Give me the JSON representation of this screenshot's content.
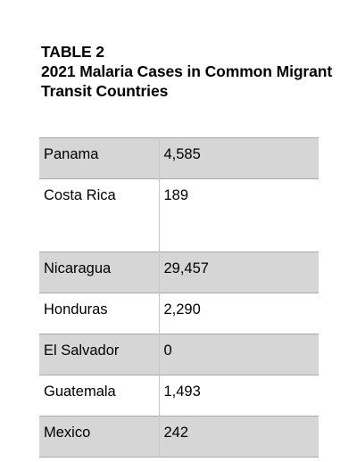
{
  "heading": {
    "label": "TABLE 2",
    "title_line1": "2021 Malaria Cases in Common Migrant",
    "title_line2": "Transit Countries"
  },
  "table": {
    "rows": [
      {
        "country": "Panama",
        "cases": "4,585",
        "shaded": true
      },
      {
        "country": "Costa Rica",
        "cases": "189",
        "shaded": false
      },
      {
        "country": "Nicaragua",
        "cases": "29,457",
        "shaded": true
      },
      {
        "country": "Honduras",
        "cases": "2,290",
        "shaded": false
      },
      {
        "country": "El Salvador",
        "cases": "0",
        "shaded": true
      },
      {
        "country": "Guatemala",
        "cases": "1,493",
        "shaded": false
      },
      {
        "country": "Mexico",
        "cases": "242",
        "shaded": true
      }
    ]
  }
}
